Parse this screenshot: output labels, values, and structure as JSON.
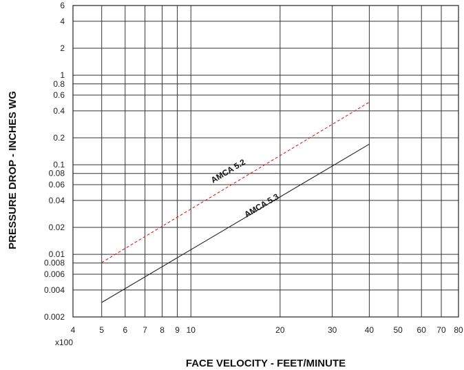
{
  "chart_data": {
    "type": "line",
    "x_scale": "log",
    "y_scale": "log",
    "grid": true,
    "legend": "none",
    "xlabel": "FACE VELOCITY - FEET/MINUTE",
    "ylabel": "PRESSURE DROP - INCHES WG",
    "x_multiplier_label": "x100",
    "xlim": [
      4,
      80
    ],
    "ylim": [
      0.002,
      6
    ],
    "x_ticks": [
      {
        "value": 4,
        "label": "4"
      },
      {
        "value": 5,
        "label": "5"
      },
      {
        "value": 6,
        "label": "6"
      },
      {
        "value": 7,
        "label": "7"
      },
      {
        "value": 8,
        "label": "8"
      },
      {
        "value": 9,
        "label": "9"
      },
      {
        "value": 10,
        "label": "10"
      },
      {
        "value": 20,
        "label": "20"
      },
      {
        "value": 30,
        "label": "30"
      },
      {
        "value": 40,
        "label": "40"
      },
      {
        "value": 50,
        "label": "50"
      },
      {
        "value": 60,
        "label": "60"
      },
      {
        "value": 70,
        "label": "70"
      },
      {
        "value": 80,
        "label": "80"
      }
    ],
    "y_ticks": [
      {
        "value": 0.002,
        "label": "0.002"
      },
      {
        "value": 0.004,
        "label": "0.004"
      },
      {
        "value": 0.006,
        "label": "0.006"
      },
      {
        "value": 0.008,
        "label": "0.008"
      },
      {
        "value": 0.01,
        "label": "0.01"
      },
      {
        "value": 0.02,
        "label": "0.02"
      },
      {
        "value": 0.04,
        "label": "0.04"
      },
      {
        "value": 0.06,
        "label": "0.06"
      },
      {
        "value": 0.08,
        "label": "0.08"
      },
      {
        "value": 0.1,
        "label": "0.1"
      },
      {
        "value": 0.2,
        "label": "0.2"
      },
      {
        "value": 0.4,
        "label": "0.4"
      },
      {
        "value": 0.6,
        "label": "0.6"
      },
      {
        "value": 0.8,
        "label": "0.8"
      },
      {
        "value": 1,
        "label": "1"
      },
      {
        "value": 2,
        "label": "2"
      },
      {
        "value": 4,
        "label": "4"
      },
      {
        "value": 6,
        "label": "6"
      }
    ],
    "series": [
      {
        "name": "AMCA 5.2",
        "style": "dashed",
        "color": "#d42020",
        "x": [
          5,
          40
        ],
        "y": [
          0.0081,
          0.5
        ],
        "label_at": {
          "x": 13.5,
          "y": 0.08
        }
      },
      {
        "name": "AMCA 5.3",
        "style": "solid",
        "color": "#222222",
        "x": [
          5,
          40
        ],
        "y": [
          0.0029,
          0.17
        ],
        "label_at": {
          "x": 17.5,
          "y": 0.033
        }
      }
    ]
  }
}
